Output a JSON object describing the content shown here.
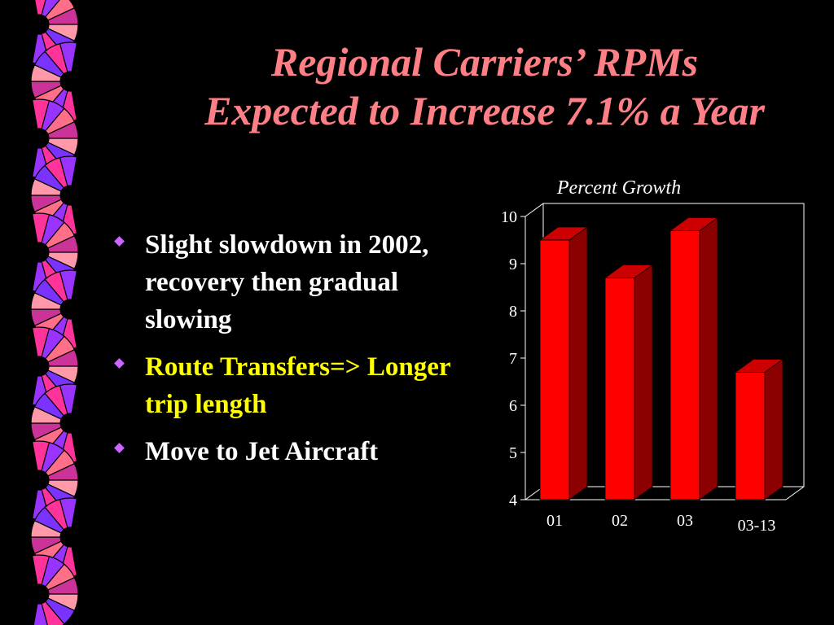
{
  "slide": {
    "title_line1": "Regional Carriers’ RPMs",
    "title_line2": "Expected to Increase 7.1% a Year",
    "colors": {
      "title": "#ff7f86",
      "background": "#000000"
    },
    "bullets": [
      {
        "text": "Slight slowdown in 2002, recovery then gradual slowing",
        "color": "#ffffff"
      },
      {
        "text": "Route Transfers=> Longer trip length",
        "color": "#ffff00"
      },
      {
        "text": "Move to Jet Aircraft",
        "color": "#ffffff"
      }
    ],
    "bullet_icon": "diamond-bullet-icon",
    "decoration": "pinwheel-border-icon"
  },
  "chart_data": {
    "type": "bar",
    "title": "Percent Growth",
    "categories": [
      "01",
      "02",
      "03",
      "03-13"
    ],
    "values": [
      9.5,
      8.7,
      9.7,
      6.7
    ],
    "ylim": [
      4,
      10
    ],
    "yticks": [
      "4",
      "5",
      "6",
      "7",
      "8",
      "9",
      "10"
    ],
    "grid": false,
    "style": "3d",
    "bar_color": "#ff0000",
    "bar_side_color": "#8b0000",
    "bar_top_color": "#cc0000",
    "xlabel": "",
    "ylabel": ""
  }
}
